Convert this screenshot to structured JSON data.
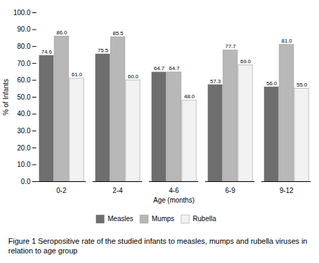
{
  "chart_data": {
    "type": "bar",
    "categories": [
      "0-2",
      "2-4",
      "4-6",
      "6-9",
      "9-12"
    ],
    "series": [
      {
        "name": "Measles",
        "color": "#6e6e6e",
        "values": [
          74.6,
          75.5,
          64.7,
          57.3,
          56.0
        ],
        "value_labels": [
          "74.6",
          "75.5",
          "64.7",
          "57.3",
          "56.0"
        ]
      },
      {
        "name": "Mumps",
        "color": "#b8b8b8",
        "values": [
          86.0,
          85.5,
          64.7,
          77.7,
          81.0
        ],
        "value_labels": [
          "86.0",
          "85.5",
          "64.7",
          "77.7",
          "81.0"
        ]
      },
      {
        "name": "Rubella",
        "color": "#f2f2f2",
        "values": [
          61.0,
          60.0,
          48.0,
          69.0,
          55.0
        ],
        "value_labels": [
          "61.0",
          "60.0",
          "48.0",
          "69.0",
          "55.0"
        ]
      }
    ],
    "xlabel": "Age (months)",
    "ylabel": "% of Infants",
    "ylim": [
      0,
      100
    ],
    "yticks": [
      {
        "value": 0,
        "label": "0.0"
      },
      {
        "value": 10,
        "label": "10.0"
      },
      {
        "value": 20,
        "label": "20.0"
      },
      {
        "value": 30,
        "label": "30.0"
      },
      {
        "value": 40,
        "label": "40.0"
      },
      {
        "value": 50,
        "label": "50.0"
      },
      {
        "value": 60,
        "label": "60.0"
      },
      {
        "value": 70,
        "label": "70.0"
      },
      {
        "value": 80,
        "label": "80.0"
      },
      {
        "value": 90,
        "label": "90.0"
      },
      {
        "value": 100,
        "label": "100.0"
      }
    ],
    "data_labels": true,
    "grid": false,
    "legend": "bottom",
    "caption": "Figure 1 Seropositive rate of the studied infants to measles, mumps and rubella viruses in relation to age group"
  }
}
